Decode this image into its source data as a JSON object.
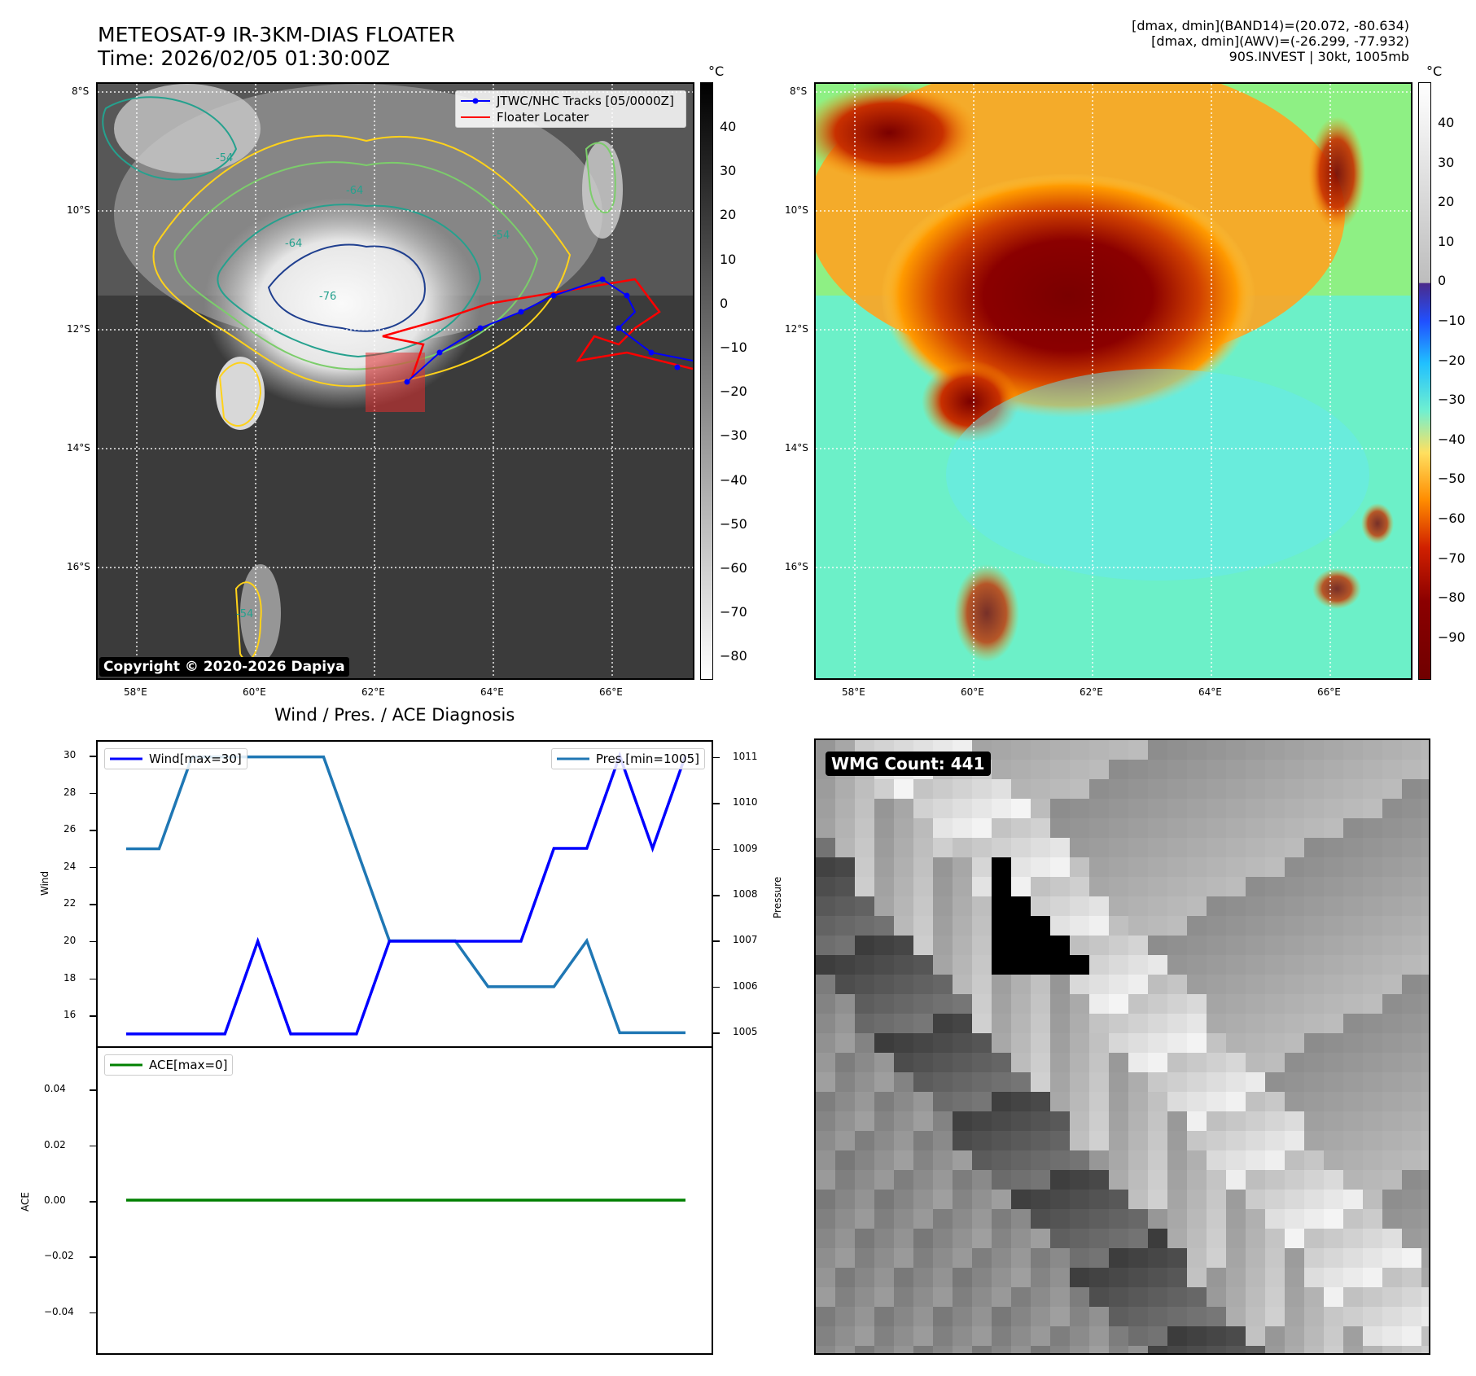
{
  "header": {
    "title_line1": "METEOSAT-9 IR-3KM-DIAS FLOATER",
    "title_line2": "Time: 2026/02/05 01:30:00Z",
    "stats_line1": "[dmax, dmin](BAND14)=(20.072, -80.634)",
    "stats_line2": "[dmax, dmin](AWV)=(-26.299, -77.932)",
    "stats_line3": "90S.INVEST | 30kt, 1005mb"
  },
  "maps": {
    "lat_ticks": [
      "8°S",
      "10°S",
      "12°S",
      "14°S",
      "16°S"
    ],
    "lon_ticks": [
      "58°E",
      "60°E",
      "62°E",
      "64°E",
      "66°E"
    ],
    "copyright": "Copyright © 2020-2026 Dapiya",
    "legend_tracks": "JTWC/NHC Tracks [05/0000Z]",
    "legend_floater": "Floater Locater",
    "track_color": "#0000ff",
    "floater_color": "#ff0000",
    "colorbar_unit": "°C",
    "ir_colorbar_ticks": [
      "40",
      "30",
      "20",
      "10",
      "0",
      "−10",
      "−20",
      "−30",
      "−40",
      "−50",
      "−60",
      "−70",
      "−80"
    ],
    "enh_colorbar_ticks": [
      "40",
      "30",
      "20",
      "10",
      "0",
      "−10",
      "−20",
      "−30",
      "−40",
      "−50",
      "−60",
      "−70",
      "−80",
      "−90"
    ],
    "contour_labels": [
      "-54",
      "-64",
      "-76",
      "-64",
      "-54",
      "-54"
    ]
  },
  "diagnosis": {
    "title": "Wind / Pres. / ACE Diagnosis",
    "wind_label": "Wind",
    "pressure_label": "Pressure",
    "ace_label": "ACE",
    "wind_legend": "Wind[max=30]",
    "pres_legend": "Pres.[min=1005]",
    "ace_legend": "ACE[max=0]",
    "wind_color": "#0000ff",
    "pres_color": "#1f77b4",
    "ace_color": "#008000"
  },
  "wmg": {
    "label": "WMG Count: 441"
  },
  "chart_data": [
    {
      "type": "line",
      "title": "Wind / Pres. / ACE Diagnosis",
      "ylabel": "Wind",
      "ylim": [
        14.25,
        30.75
      ],
      "yticks": [
        "16",
        "18",
        "20",
        "22",
        "24",
        "26",
        "28",
        "30"
      ],
      "series": [
        {
          "name": "Wind[max=30]",
          "axis": "left",
          "values": [
            15,
            15,
            15,
            15,
            20,
            15,
            15,
            15,
            20,
            20,
            20,
            20,
            20,
            25,
            25,
            30,
            25,
            30
          ]
        },
        {
          "name": "Pres.[min=1005]",
          "axis": "right",
          "values": [
            1009,
            1009,
            1011,
            1011,
            1011,
            1011,
            1011,
            1009,
            1007,
            1007,
            1007,
            1006,
            1006,
            1006,
            1007,
            1005,
            1005,
            1005
          ]
        }
      ],
      "y2label": "Pressure",
      "y2lim": [
        1004.67,
        1011.33
      ],
      "y2ticks": [
        "1005",
        "1006",
        "1007",
        "1008",
        "1009",
        "1010",
        "1011"
      ]
    },
    {
      "type": "line",
      "ylabel": "ACE",
      "ylim": [
        -0.055,
        0.055
      ],
      "yticks": [
        "0.04",
        "0.02",
        "0.00",
        "−0.02",
        "−0.04"
      ],
      "series": [
        {
          "name": "ACE[max=0]",
          "values": [
            0,
            0,
            0,
            0,
            0,
            0,
            0,
            0,
            0,
            0,
            0,
            0,
            0,
            0,
            0,
            0,
            0,
            0
          ]
        }
      ]
    }
  ]
}
